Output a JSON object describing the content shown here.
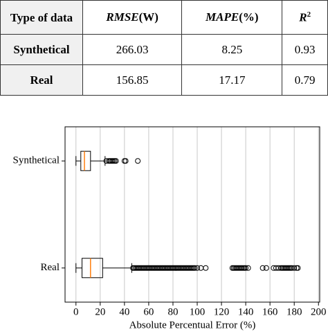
{
  "table": {
    "header": [
      [
        "Type of data"
      ],
      [
        "RMSE",
        "(W)"
      ],
      [
        "MAPE",
        "(%)"
      ],
      [
        "R",
        "2"
      ]
    ],
    "rows": [
      [
        "Synthetical",
        266.03,
        8.25,
        0.93
      ],
      [
        "Real",
        156.85,
        17.17,
        0.79
      ]
    ]
  },
  "chart_data": {
    "type": "boxplot",
    "orientation": "horizontal",
    "x_label": "Absolute Percentual Error (%)",
    "categories": [
      "Synthetical",
      "Real"
    ],
    "boxes": [
      {
        "low": 0,
        "q1": 4,
        "median": 7,
        "q3": 12,
        "high": 24,
        "outliers": [
          25,
          27,
          28,
          29,
          30,
          31,
          32,
          33,
          40,
          41,
          51
        ]
      },
      {
        "low": 0,
        "q1": 5,
        "median": 12,
        "q3": 22,
        "high": 46,
        "outliers": [
          47,
          48,
          49,
          50,
          51,
          52,
          53,
          54,
          55,
          56,
          57,
          58,
          59,
          60,
          61,
          62,
          63,
          64,
          65,
          66,
          67,
          68,
          69,
          70,
          71,
          72,
          73,
          74,
          75,
          76,
          77,
          78,
          79,
          80,
          81,
          82,
          83,
          84,
          85,
          86,
          87,
          88,
          89,
          90,
          91,
          92,
          93,
          94,
          95,
          96,
          97,
          98,
          100,
          103,
          107,
          129,
          130,
          131,
          132,
          133,
          134,
          135,
          136,
          137,
          138,
          139,
          140,
          142,
          154,
          157,
          163,
          165,
          167,
          169,
          170,
          171,
          172,
          173,
          174,
          175,
          176,
          177,
          178,
          180,
          182,
          183
        ]
      }
    ],
    "median_color": "#ff7f0e",
    "box_color": "#000000",
    "xlim": [
      -9,
      201
    ],
    "xticks": [
      0,
      20,
      40,
      60,
      80,
      100,
      120,
      140,
      160,
      180,
      200
    ],
    "grid": true
  }
}
